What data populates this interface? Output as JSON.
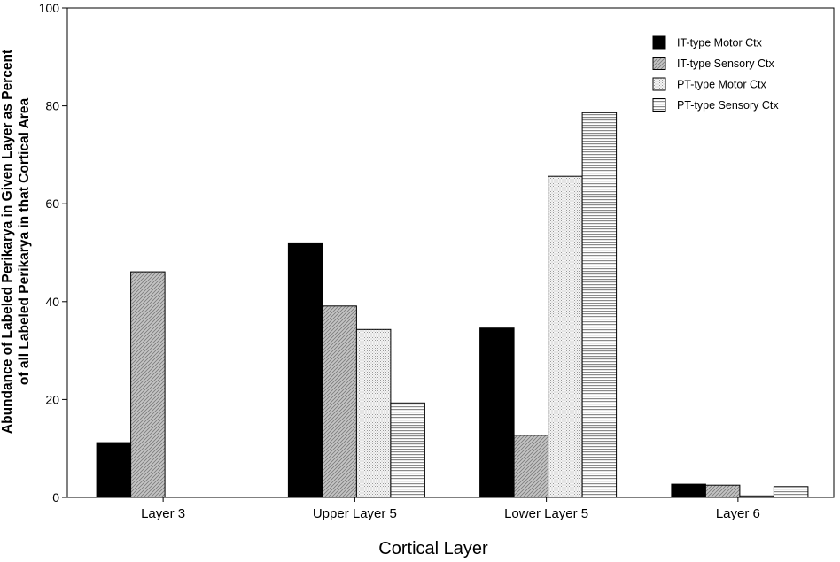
{
  "chart_data": {
    "type": "bar",
    "title": "",
    "xlabel": "Cortical Layer",
    "ylabel_lines": [
      "Abundance of Labeled Perikarya in Given Layer as Percent",
      "of all Labeled Perikarya in that Cortical Area"
    ],
    "ylim": [
      0,
      100
    ],
    "yticks": [
      0,
      20,
      40,
      60,
      80,
      100
    ],
    "grid": false,
    "legend_position": "top-right",
    "categories": [
      "Layer 3",
      "Upper Layer 5",
      "Lower Layer 5",
      "Layer 6"
    ],
    "series": [
      {
        "name": "IT-type Motor Ctx",
        "values": [
          11.2,
          52,
          34.6,
          2.7
        ],
        "fill": "solid-black"
      },
      {
        "name": "IT-type Sensory Ctx",
        "values": [
          46.1,
          39.1,
          12.7,
          2.5
        ],
        "fill": "diagonal-hatch-gray"
      },
      {
        "name": "PT-type Motor Ctx",
        "values": [
          0,
          34.3,
          65.6,
          0.3
        ],
        "fill": "light-dots"
      },
      {
        "name": "PT-type Sensory Ctx",
        "values": [
          0,
          19.3,
          78.6,
          2.2
        ],
        "fill": "horizontal-lines"
      }
    ]
  }
}
